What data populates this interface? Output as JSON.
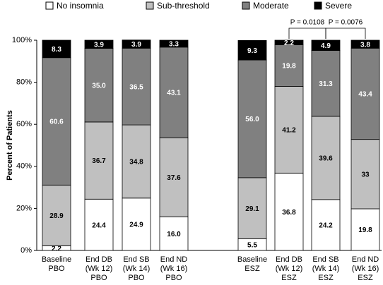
{
  "chart_data": {
    "type": "stacked_bar",
    "y_label": "Percent of Patients",
    "categories": [
      "Baseline\nPBO",
      "End DB\n(Wk 12)\nPBO",
      "End SB\n(Wk 14)\nPBO",
      "End ND\n(Wk 16)\nPBO",
      "Baseline\nESZ",
      "End DB\n(Wk 12)\nESZ",
      "End SB\n(Wk 14)\nESZ",
      "End ND\n(Wk 16)\nESZ"
    ],
    "series": [
      {
        "name": "No insomnia",
        "color": "#ffffff",
        "values": [
          2.2,
          24.4,
          24.9,
          16.0,
          5.5,
          36.8,
          24.2,
          19.8
        ],
        "value_labels": [
          "2.2",
          "24.4",
          "24.9",
          "16.0",
          "5.5",
          "36.8",
          "24.2",
          "19.8"
        ]
      },
      {
        "name": "Sub-threshold",
        "color": "#c0c0c0",
        "values": [
          28.9,
          36.7,
          34.8,
          37.6,
          29.1,
          41.2,
          39.6,
          33
        ],
        "value_labels": [
          "28.9",
          "36.7",
          "34.8",
          "37.6",
          "29.1",
          "41.2",
          "39.6",
          "33"
        ]
      },
      {
        "name": "Moderate",
        "color": "#808080",
        "values": [
          60.6,
          35.0,
          36.5,
          43.1,
          56.0,
          19.8,
          31.3,
          43.4
        ],
        "value_labels": [
          "60.6",
          "35.0",
          "36.5",
          "43.1",
          "56.0",
          "19.8",
          "31.3",
          "43.4"
        ]
      },
      {
        "name": "Severe",
        "color": "#000000",
        "values": [
          8.3,
          3.9,
          3.9,
          3.3,
          9.3,
          2.2,
          4.9,
          3.8
        ],
        "value_labels": [
          "8.3",
          "3.9",
          "3.9",
          "3.3",
          "9.3",
          "2.2",
          "4.9",
          "3.8"
        ]
      }
    ],
    "ylim": [
      0,
      100
    ],
    "yticks": [
      {
        "value": 0,
        "label": "0%"
      },
      {
        "value": 20,
        "label": "20%"
      },
      {
        "value": 40,
        "label": "40%"
      },
      {
        "value": 60,
        "label": "60%"
      },
      {
        "value": 80,
        "label": "80%"
      },
      {
        "value": 100,
        "label": "100%"
      }
    ],
    "grid": false,
    "legend": "top",
    "annotations": [
      {
        "text": "P = 0.0108"
      },
      {
        "text": "P = 0.0076"
      }
    ]
  }
}
